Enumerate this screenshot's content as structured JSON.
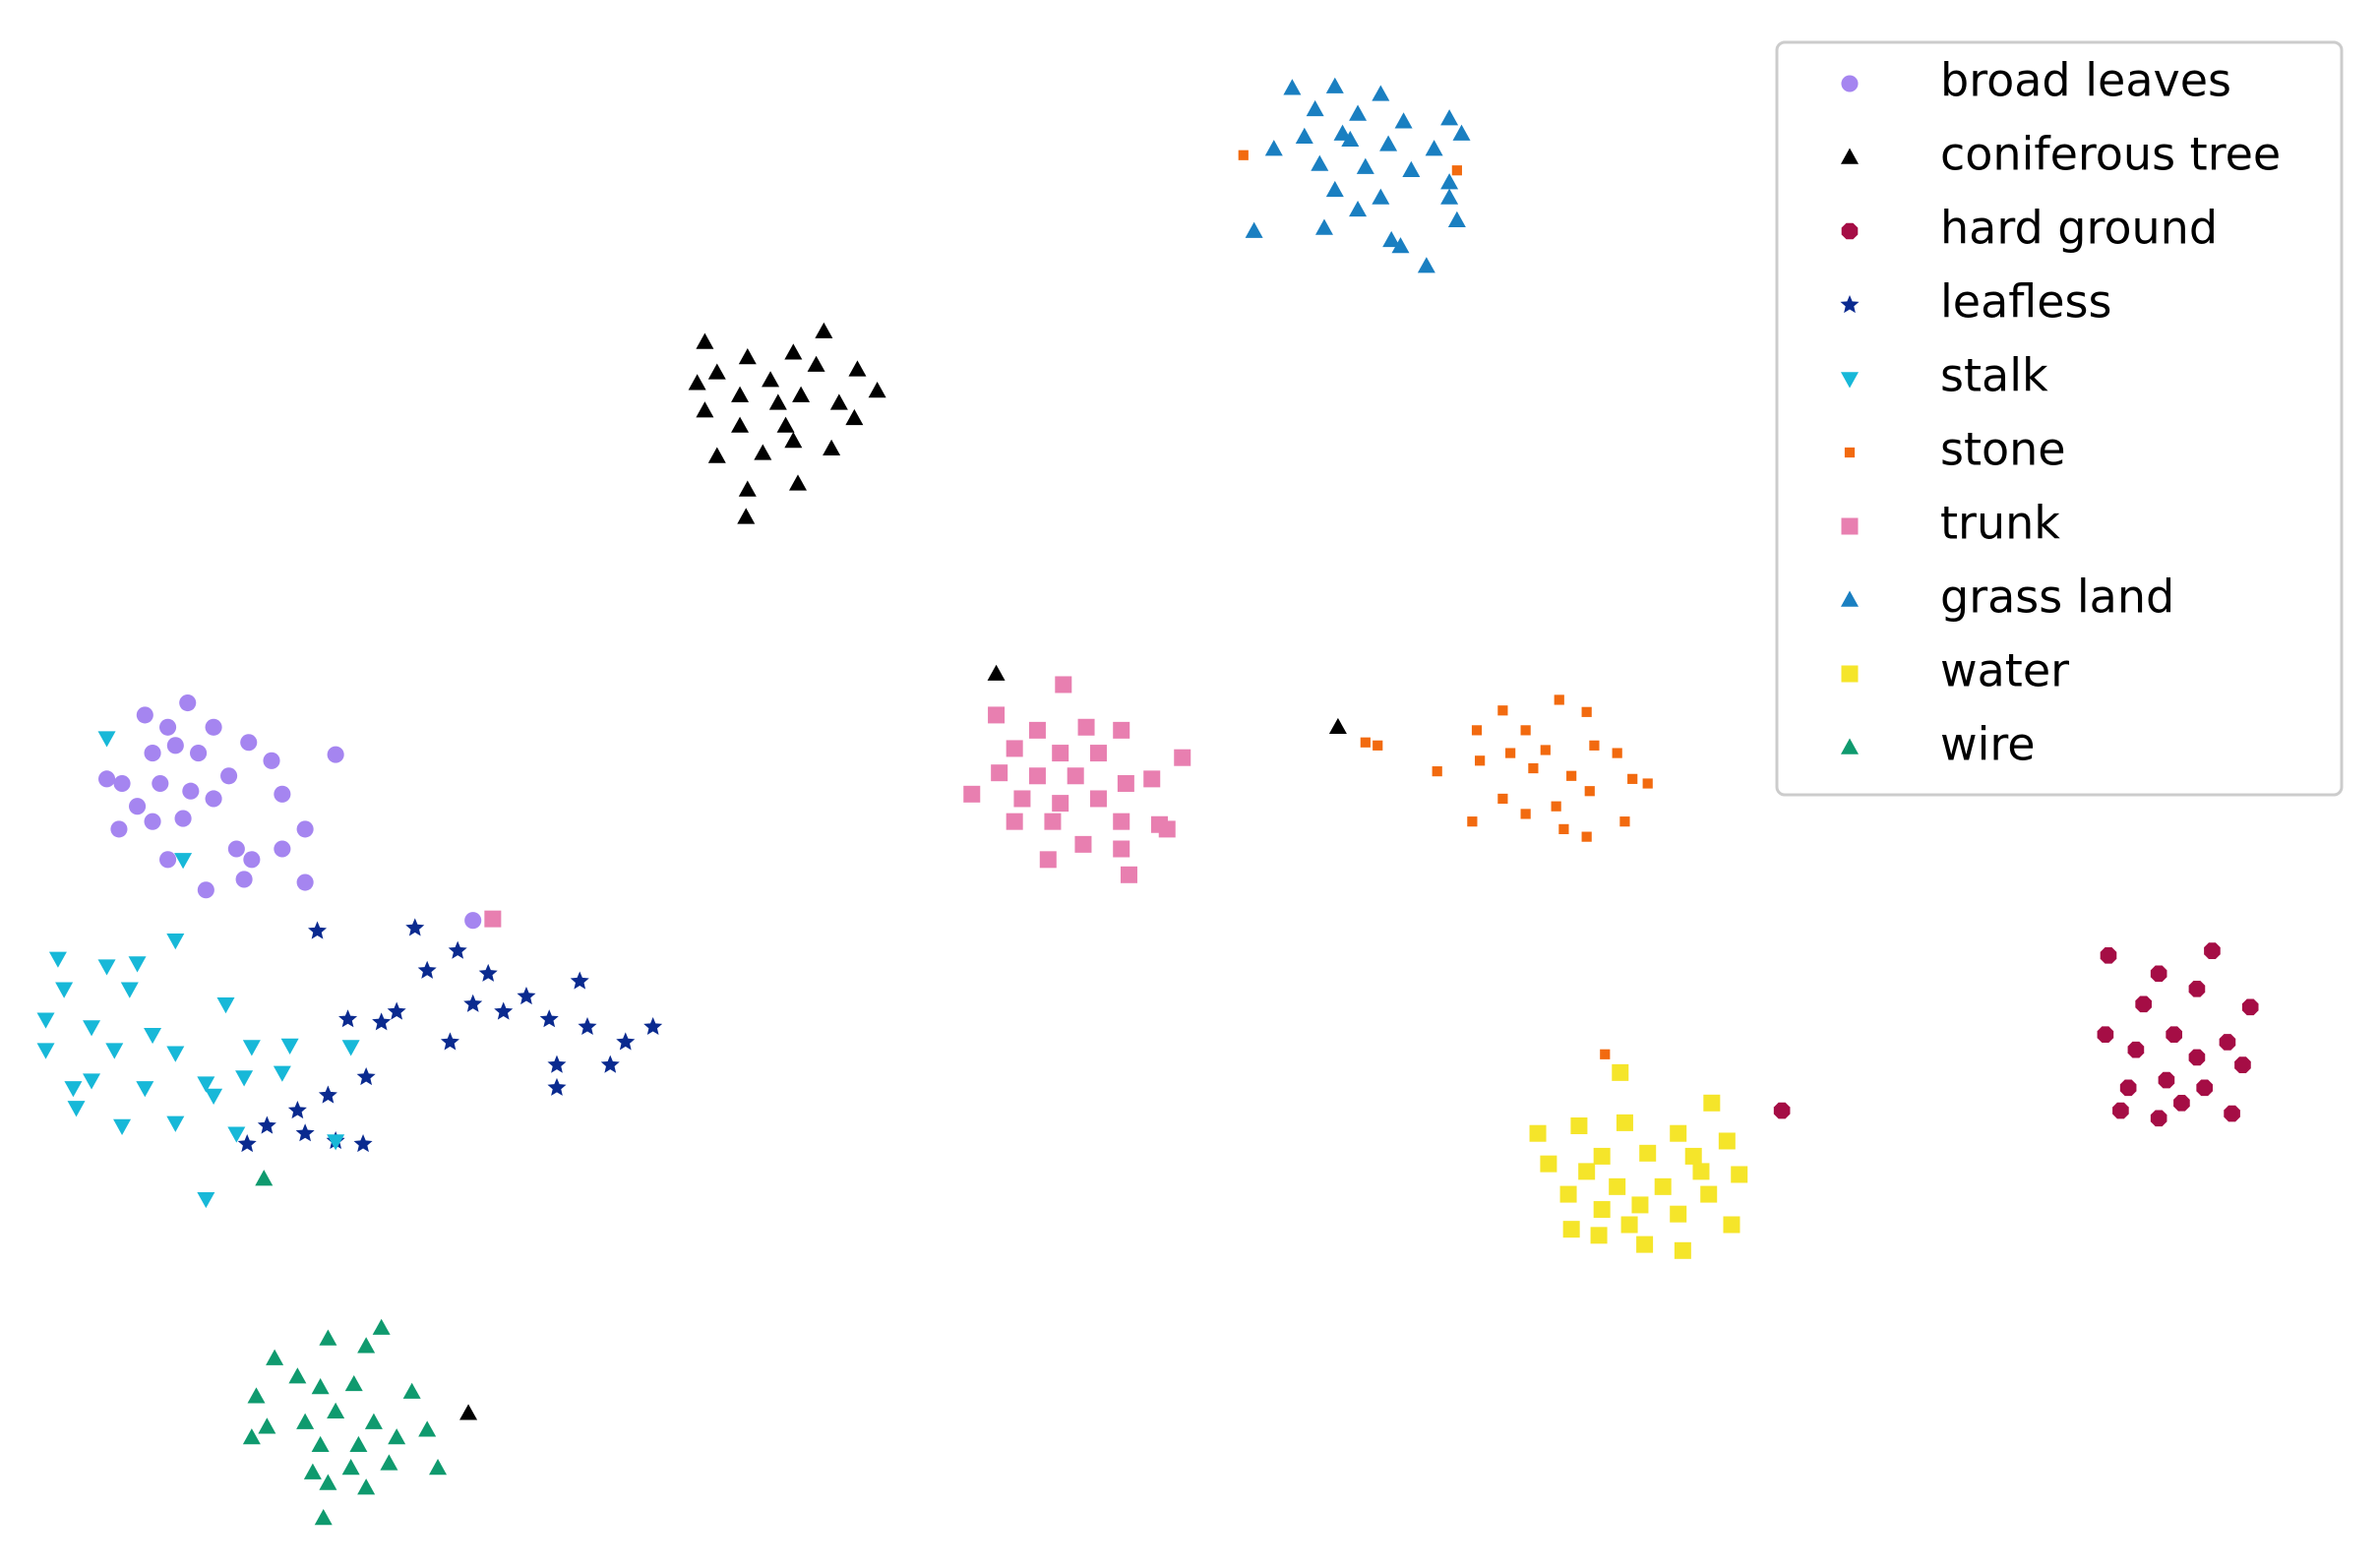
{
  "chart_data": {
    "type": "scatter",
    "xlim": [
      0,
      156
    ],
    "ylim": [
      0,
      103
    ],
    "grid": false,
    "legend": "upper right",
    "series": [
      {
        "name": "broad leaves",
        "color": "#a585f0",
        "marker": "o",
        "size": 18,
        "x": [
          9.5,
          12.3,
          11.0,
          14.0,
          16.3,
          7.0,
          10.0,
          11.5,
          13.0,
          15.0,
          17.8,
          22.0,
          8.0,
          10.5,
          12.5,
          14.0,
          18.5,
          7.8,
          10.0,
          12.0,
          20.0,
          15.5,
          18.5,
          11.0,
          13.5,
          16.0,
          20.0,
          31.0,
          9.0,
          16.5
        ],
        "values": [
          56.0,
          56.8,
          55.2,
          55.2,
          54.2,
          51.8,
          53.5,
          54.0,
          53.5,
          52.0,
          53.0,
          53.4,
          51.5,
          51.5,
          51.0,
          50.5,
          50.8,
          48.5,
          49.0,
          49.2,
          48.5,
          47.2,
          47.2,
          46.5,
          44.5,
          45.2,
          45.0,
          42.5,
          50.0,
          46.5
        ]
      },
      {
        "name": "coniferous tree",
        "color": "#000000",
        "marker": "^",
        "size": 18,
        "x": [
          46.2,
          54.0,
          49.0,
          52.0,
          47.0,
          50.5,
          53.5,
          56.2,
          57.5,
          46.2,
          48.5,
          51.0,
          52.5,
          55.0,
          47.0,
          50.0,
          52.0,
          54.5,
          48.5,
          51.5,
          49.0,
          52.3,
          48.9,
          45.7,
          56.0,
          65.3,
          87.7,
          30.7
        ],
        "values": [
          80.5,
          81.2,
          79.5,
          79.8,
          78.5,
          78.0,
          79.0,
          78.7,
          77.3,
          76.0,
          77.0,
          76.5,
          77.0,
          76.5,
          73.0,
          73.2,
          74.0,
          73.5,
          75.0,
          75.0,
          70.8,
          71.2,
          69.0,
          77.8,
          75.5,
          58.7,
          55.2,
          10.1
        ]
      },
      {
        "name": "hard ground",
        "color": "#a50d45",
        "marker": "8",
        "size": 18,
        "x": [
          138.2,
          145.0,
          141.5,
          144.0,
          140.5,
          147.5,
          138.0,
          142.5,
          146.0,
          140.0,
          144.0,
          147.0,
          139.5,
          142.0,
          144.5,
          139.0,
          141.5,
          143.0,
          146.3,
          116.8
        ],
        "values": [
          40.2,
          40.5,
          39.0,
          38.0,
          37.0,
          36.8,
          35.0,
          35.0,
          34.5,
          34.0,
          33.5,
          33.0,
          31.5,
          32.0,
          31.5,
          30.0,
          29.5,
          30.5,
          29.8,
          30.0
        ]
      },
      {
        "name": "leafless",
        "color": "#0a2a8f",
        "marker": "*",
        "size": 20,
        "x": [
          20.8,
          27.2,
          30.0,
          28.0,
          32.0,
          34.5,
          31.0,
          38.0,
          26.0,
          22.8,
          25.0,
          36.0,
          38.5,
          29.5,
          41.0,
          42.8,
          36.5,
          40.0,
          24.0,
          21.5,
          19.5,
          17.5,
          20.0,
          22.0,
          23.8,
          16.2,
          36.5,
          33.0
        ],
        "values": [
          41.8,
          42.0,
          40.5,
          39.2,
          39.0,
          37.5,
          37.0,
          38.5,
          36.5,
          36.0,
          35.8,
          36.0,
          35.5,
          34.5,
          34.5,
          35.5,
          33.0,
          33.0,
          32.2,
          31.0,
          30.0,
          29.0,
          28.5,
          28.0,
          27.8,
          27.8,
          31.5,
          36.5
        ]
      },
      {
        "name": "stalk",
        "color": "#17b8d8",
        "marker": "v",
        "size": 18,
        "x": [
          7.0,
          12.0,
          11.5,
          3.8,
          7.0,
          9.0,
          4.2,
          8.5,
          14.8,
          3.0,
          6.0,
          10.0,
          19.0,
          16.5,
          23.0,
          3.0,
          7.5,
          11.5,
          4.8,
          9.5,
          13.5,
          16.0,
          18.5,
          6.0,
          5.0,
          8.0,
          11.5,
          14.0,
          15.5,
          22.0,
          13.5
        ],
        "values": [
          54.5,
          46.5,
          41.2,
          40.0,
          39.5,
          39.7,
          38.0,
          38.0,
          37.0,
          36.0,
          35.5,
          35.0,
          34.3,
          34.2,
          34.2,
          34.0,
          34.0,
          33.8,
          31.5,
          31.5,
          31.8,
          32.2,
          32.5,
          32.0,
          30.2,
          29.0,
          29.2,
          31.0,
          28.5,
          28.0,
          24.2
        ]
      },
      {
        "name": "stone",
        "color": "#f26a0f",
        "marker": "s",
        "size": 12,
        "x": [
          81.5,
          95.5,
          98.5,
          102.2,
          104.0,
          96.8,
          100.0,
          104.5,
          89.5,
          90.3,
          99.0,
          101.3,
          106.0,
          94.2,
          97.0,
          100.5,
          103.0,
          107.0,
          108.0,
          98.5,
          102.0,
          104.2,
          96.5,
          100.0,
          102.5,
          104.0,
          106.5,
          105.2
        ],
        "values": [
          92.8,
          91.8,
          56.3,
          57.0,
          56.2,
          55.0,
          55.0,
          54.0,
          54.2,
          54.0,
          53.5,
          53.7,
          53.5,
          52.3,
          53.0,
          52.5,
          52.0,
          51.8,
          51.5,
          50.5,
          50.0,
          51.0,
          49.0,
          49.5,
          48.5,
          48.0,
          49.0,
          33.7
        ]
      },
      {
        "name": "trunk",
        "color": "#e87fb0",
        "marker": "s",
        "size": 20,
        "x": [
          69.7,
          65.3,
          68.0,
          71.2,
          73.5,
          66.5,
          69.5,
          72.0,
          77.5,
          65.5,
          68.0,
          70.5,
          73.8,
          75.5,
          63.7,
          67.0,
          69.5,
          72.0,
          76.0,
          66.5,
          69.0,
          73.5,
          71.0,
          73.5,
          76.5,
          68.7,
          74.0,
          32.3
        ],
        "values": [
          58.0,
          56.0,
          55.0,
          55.2,
          55.0,
          53.8,
          53.5,
          53.5,
          53.2,
          52.2,
          52.0,
          52.0,
          51.5,
          51.8,
          50.8,
          50.5,
          50.2,
          50.5,
          48.8,
          49.0,
          49.0,
          49.0,
          47.5,
          47.2,
          48.5,
          46.5,
          45.5,
          42.6
        ]
      },
      {
        "name": "grass land",
        "color": "#1a7fc1",
        "marker": "^",
        "size": 18,
        "x": [
          84.7,
          87.5,
          90.5,
          86.2,
          89.0,
          92.0,
          95.0,
          95.8,
          83.5,
          85.5,
          88.5,
          91.0,
          94.0,
          86.5,
          89.5,
          92.5,
          95.0,
          87.5,
          90.5,
          95.0,
          89.0,
          95.5,
          82.2,
          86.8,
          91.2,
          91.8,
          93.5,
          88.0
        ],
        "values": [
          97.2,
          97.3,
          96.8,
          95.8,
          95.5,
          95.0,
          95.2,
          94.2,
          93.2,
          94.0,
          93.8,
          93.5,
          93.2,
          92.2,
          92.0,
          91.8,
          91.0,
          90.5,
          90.0,
          90.0,
          89.2,
          88.5,
          87.8,
          88.0,
          87.2,
          86.8,
          85.5,
          94.2
        ]
      },
      {
        "name": "water",
        "color": "#f5e52a",
        "marker": "s",
        "size": 20,
        "x": [
          106.2,
          112.2,
          100.8,
          103.5,
          106.5,
          110.0,
          113.2,
          105.0,
          108.0,
          111.0,
          101.5,
          104.0,
          114.0,
          106.0,
          109.0,
          112.0,
          102.8,
          105.0,
          107.5,
          110.0,
          103.0,
          104.8,
          106.8,
          113.5,
          107.8,
          110.3,
          111.5
        ],
        "values": [
          32.5,
          30.5,
          28.5,
          29.0,
          29.2,
          28.5,
          28.0,
          27.0,
          27.2,
          27.0,
          26.5,
          26.0,
          25.8,
          25.0,
          25.0,
          24.5,
          24.5,
          23.5,
          23.8,
          23.2,
          22.2,
          21.8,
          22.5,
          22.5,
          21.2,
          20.8,
          26.0
        ]
      },
      {
        "name": "wire",
        "color": "#0f9a6e",
        "marker": "^",
        "size": 18,
        "x": [
          17.3,
          25.0,
          18.0,
          21.5,
          24.0,
          16.8,
          19.5,
          21.0,
          23.2,
          27.0,
          17.5,
          20.0,
          22.0,
          24.5,
          28.0,
          16.5,
          21.0,
          23.5,
          26.0,
          20.5,
          23.0,
          25.5,
          28.7,
          21.5,
          24.0,
          21.2
        ],
        "values": [
          25.5,
          15.7,
          13.7,
          15.0,
          14.5,
          11.2,
          12.5,
          11.8,
          12.0,
          11.5,
          9.2,
          9.5,
          10.2,
          9.5,
          9.0,
          8.5,
          8.0,
          8.0,
          8.5,
          6.2,
          6.5,
          6.8,
          6.5,
          5.5,
          5.2,
          3.2
        ]
      }
    ]
  }
}
